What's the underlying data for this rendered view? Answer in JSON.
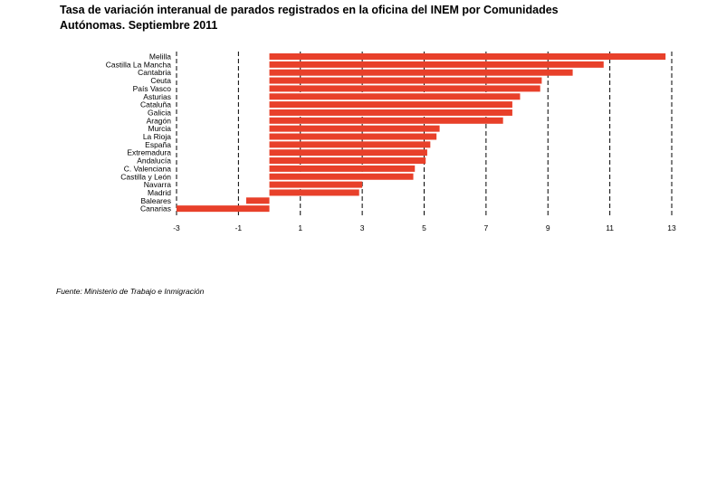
{
  "title": "Tasa de variación interanual de parados registrados en la oficina del INEM por Comunidades Autónomas. Septiembre 2011",
  "source": "Fuente: Ministerio de Trabajo e Inmigración",
  "bar_color": "#e8402a",
  "chart_data": {
    "type": "bar",
    "orientation": "horizontal",
    "title": "Tasa de variación interanual de parados registrados en la oficina del INEM por Comunidades Autónomas. Septiembre 2011",
    "xlabel": "",
    "ylabel": "",
    "xlim": [
      -3,
      13
    ],
    "xticks": [
      -3,
      -1,
      1,
      3,
      5,
      7,
      9,
      11,
      13
    ],
    "grid": "vertical dashed",
    "categories": [
      "Melilla",
      "Castilla La Mancha",
      "Cantabria",
      "Ceuta",
      "País Vasco",
      "Asturias",
      "Cataluña",
      "Galicia",
      "Aragón",
      "Murcia",
      "La Rioja",
      "España",
      "Extremadura",
      "Andalucía",
      "C. Valenciana",
      "Castilla y León",
      "Navarra",
      "Madrid",
      "Baleares",
      "Canarias"
    ],
    "values": [
      12.8,
      10.8,
      9.8,
      8.8,
      8.75,
      8.1,
      7.85,
      7.85,
      7.55,
      5.5,
      5.4,
      5.2,
      5.1,
      5.05,
      4.7,
      4.65,
      3.0,
      2.9,
      -0.75,
      -3.0
    ]
  }
}
